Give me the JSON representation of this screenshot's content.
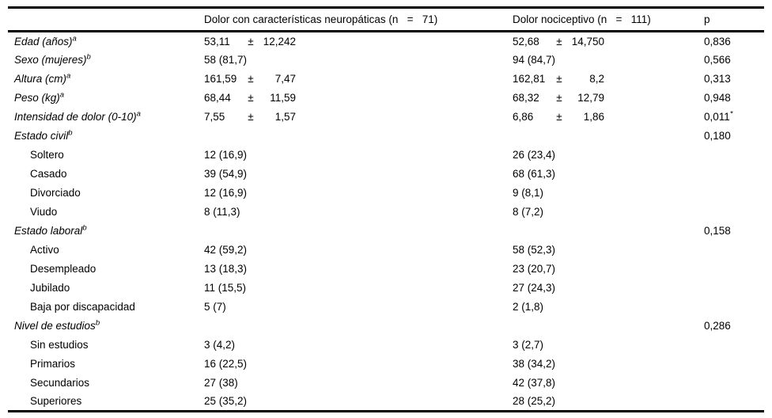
{
  "table": {
    "pm_symbol": "±",
    "header": {
      "empty": "",
      "group1": "Dolor con características neuropáticas (n   =   71)",
      "group2": "Dolor nociceptivo (n   =   111)",
      "p": "p"
    },
    "rows": [
      {
        "label": "Edad (años)",
        "sup": "a",
        "italic": true,
        "indent": false,
        "g1": {
          "mean": "53,11",
          "sd": "12,242"
        },
        "g2": {
          "mean": "52,68",
          "sd": "14,750"
        },
        "p": "0,836"
      },
      {
        "label": "Sexo (mujeres)",
        "sup": "b",
        "italic": true,
        "indent": false,
        "g1": "58 (81,7)",
        "g2": "94 (84,7)",
        "p": "0,566"
      },
      {
        "label": "Altura (cm)",
        "sup": "a",
        "italic": true,
        "indent": false,
        "g1": {
          "mean": "161,59",
          "sd": "7,47"
        },
        "g2": {
          "mean": "162,81",
          "sd": "8,2"
        },
        "p": "0,313"
      },
      {
        "label": "Peso (kg)",
        "sup": "a",
        "italic": true,
        "indent": false,
        "g1": {
          "mean": "68,44",
          "sd": "11,59"
        },
        "g2": {
          "mean": "68,32",
          "sd": "12,79"
        },
        "p": "0,948"
      },
      {
        "label": "Intensidad de dolor (0-10)",
        "sup": "a",
        "italic": true,
        "indent": false,
        "g1": {
          "mean": "7,55",
          "sd": "1,57"
        },
        "g2": {
          "mean": "6,86",
          "sd": "1,86"
        },
        "p": "0,011",
        "p_sup": "*"
      },
      {
        "label": "Estado civil",
        "sup": "b",
        "italic": true,
        "indent": false,
        "p": "0,180"
      },
      {
        "label": "Soltero",
        "indent": true,
        "g1": "12 (16,9)",
        "g2": "26 (23,4)"
      },
      {
        "label": "Casado",
        "indent": true,
        "g1": "39 (54,9)",
        "g2": "68 (61,3)"
      },
      {
        "label": "Divorciado",
        "indent": true,
        "g1": "12 (16,9)",
        "g2": "9 (8,1)"
      },
      {
        "label": "Viudo",
        "indent": true,
        "g1": "8 (11,3)",
        "g2": "8 (7,2)"
      },
      {
        "label": "Estado laboral",
        "sup": "b",
        "italic": true,
        "indent": false,
        "p": "0,158"
      },
      {
        "label": "Activo",
        "indent": true,
        "g1": "42 (59,2)",
        "g2": "58 (52,3)"
      },
      {
        "label": "Desempleado",
        "indent": true,
        "g1": "13 (18,3)",
        "g2": "23 (20,7)"
      },
      {
        "label": "Jubilado",
        "indent": true,
        "g1": "11 (15,5)",
        "g2": "27 (24,3)"
      },
      {
        "label": "Baja por discapacidad",
        "indent": true,
        "g1": "5 (7)",
        "g2": "2 (1,8)"
      },
      {
        "label": "Nivel de estudios",
        "sup": "b",
        "italic": true,
        "indent": false,
        "p": "0,286"
      },
      {
        "label": "Sin estudios",
        "indent": true,
        "g1": "3 (4,2)",
        "g2": "3 (2,7)"
      },
      {
        "label": "Primarios",
        "indent": true,
        "g1": "16 (22,5)",
        "g2": "38 (34,2)"
      },
      {
        "label": "Secundarios",
        "indent": true,
        "g1": "27 (38)",
        "g2": "42 (37,8)"
      },
      {
        "label": "Superiores",
        "indent": true,
        "g1": "25 (35,2)",
        "g2": "28 (25,2)"
      }
    ]
  }
}
